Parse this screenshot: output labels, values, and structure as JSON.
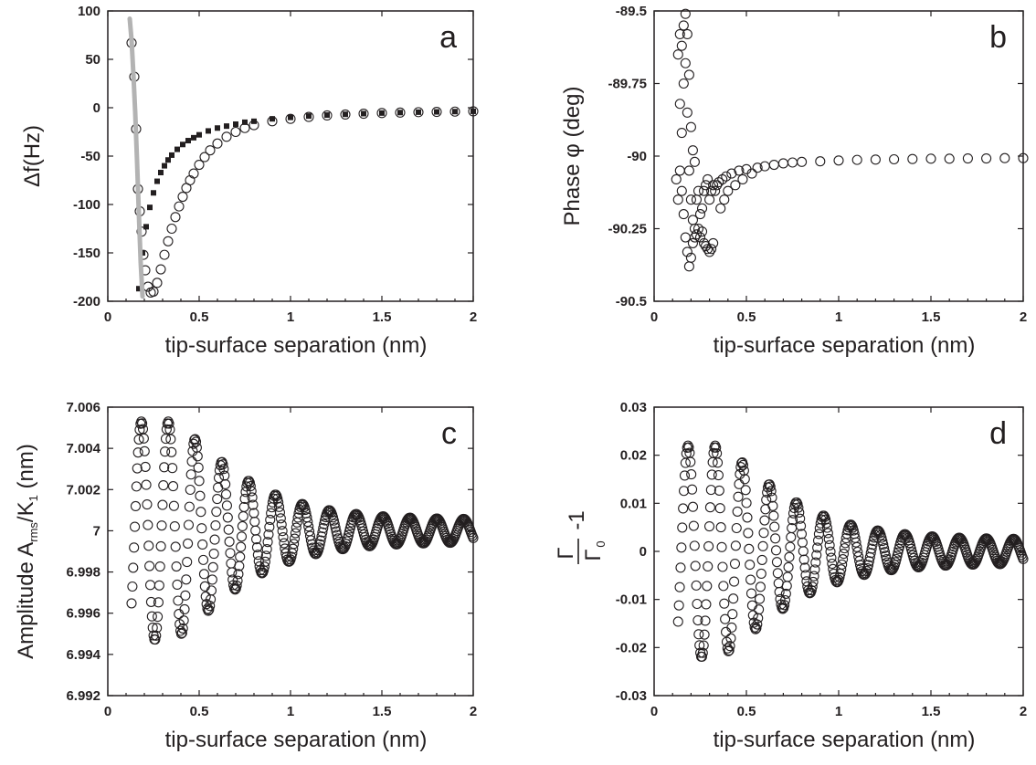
{
  "colors": {
    "ink": "#231f20",
    "model_line": "#b3b3b3",
    "background": "#ffffff"
  },
  "chart_data": [
    {
      "panel": "a",
      "type": "scatter",
      "letter": "a",
      "xlabel": "tip-surface separation (nm)",
      "ylabel": "Δf(Hz)",
      "xlim": [
        0,
        2
      ],
      "ylim": [
        -200,
        100
      ],
      "xticks": [
        "0",
        "0.5",
        "1",
        "1.5",
        "2"
      ],
      "yticks": [
        "100",
        "50",
        "0",
        "-50",
        "-100",
        "-150",
        "-200"
      ],
      "grid": false,
      "series": [
        {
          "style": "open-circles",
          "x": [
            0.13,
            0.145,
            0.155,
            0.165,
            0.175,
            0.185,
            0.195,
            0.205,
            0.22,
            0.235,
            0.25,
            0.27,
            0.29,
            0.31,
            0.33,
            0.35,
            0.37,
            0.39,
            0.41,
            0.43,
            0.45,
            0.47,
            0.5,
            0.53,
            0.56,
            0.6,
            0.65,
            0.7,
            0.75,
            0.8,
            0.9,
            1.0,
            1.1,
            1.2,
            1.3,
            1.4,
            1.5,
            1.6,
            1.7,
            1.8,
            1.9,
            2.0
          ],
          "y": [
            67,
            32,
            -22,
            -84,
            -107,
            -128,
            -152,
            -168,
            -185,
            -191,
            -190,
            -181,
            -167,
            -152,
            -138,
            -125,
            -113,
            -102,
            -92,
            -83,
            -75,
            -68,
            -59,
            -51,
            -44,
            -37,
            -30,
            -25,
            -21,
            -18,
            -14,
            -11.5,
            -9.5,
            -8,
            -7,
            -6.2,
            -5.5,
            -5,
            -4.6,
            -4.3,
            -4,
            -3.7
          ]
        },
        {
          "style": "filled-squares",
          "x": [
            0.17,
            0.19,
            0.21,
            0.23,
            0.25,
            0.27,
            0.29,
            0.31,
            0.33,
            0.35,
            0.38,
            0.41,
            0.44,
            0.47,
            0.5,
            0.55,
            0.6,
            0.65,
            0.7,
            0.75,
            0.8,
            0.9,
            1.0,
            1.1,
            1.2,
            1.3,
            1.4,
            1.5,
            1.6,
            1.7,
            1.8,
            1.9,
            2.0
          ],
          "y": [
            -187,
            -150,
            -123,
            -103,
            -88,
            -76,
            -67,
            -60,
            -54,
            -49,
            -43,
            -38,
            -34,
            -31,
            -28,
            -24,
            -21,
            -19,
            -17,
            -15,
            -14,
            -11.5,
            -10,
            -8.6,
            -7.6,
            -6.8,
            -6.1,
            -5.5,
            -5,
            -4.6,
            -4.3,
            -4,
            -3.7
          ]
        },
        {
          "style": "gray-line",
          "x": [
            0.12,
            0.13,
            0.14,
            0.15,
            0.16,
            0.17,
            0.18,
            0.19
          ],
          "y": [
            92,
            70,
            35,
            -5,
            -55,
            -110,
            -160,
            -195
          ]
        }
      ]
    },
    {
      "panel": "b",
      "type": "scatter",
      "letter": "b",
      "xlabel": "tip-surface separation (nm)",
      "ylabel": "Phase φ (deg)",
      "xlim": [
        0,
        2
      ],
      "ylim": [
        -90.5,
        -89.5
      ],
      "xticks": [
        "0",
        "0.5",
        "1",
        "1.5",
        "2"
      ],
      "yticks": [
        "-89.5",
        "-89.75",
        "-90",
        "-90.25",
        "-90.5"
      ],
      "grid": false,
      "series": [
        {
          "style": "open-circles",
          "x": [
            0.12,
            0.13,
            0.13,
            0.14,
            0.14,
            0.14,
            0.15,
            0.15,
            0.15,
            0.16,
            0.16,
            0.16,
            0.17,
            0.17,
            0.17,
            0.18,
            0.18,
            0.18,
            0.19,
            0.19,
            0.19,
            0.2,
            0.2,
            0.2,
            0.21,
            0.21,
            0.21,
            0.22,
            0.22,
            0.22,
            0.23,
            0.23,
            0.24,
            0.24,
            0.25,
            0.25,
            0.26,
            0.26,
            0.27,
            0.27,
            0.28,
            0.28,
            0.29,
            0.29,
            0.3,
            0.3,
            0.31,
            0.31,
            0.32,
            0.32,
            0.33,
            0.34,
            0.35,
            0.36,
            0.37,
            0.38,
            0.39,
            0.4,
            0.42,
            0.44,
            0.46,
            0.48,
            0.5,
            0.53,
            0.56,
            0.6,
            0.65,
            0.7,
            0.75,
            0.8,
            0.9,
            1.0,
            1.1,
            1.2,
            1.3,
            1.4,
            1.5,
            1.6,
            1.7,
            1.8,
            1.9,
            2.0
          ],
          "y": [
            -90.08,
            -89.65,
            -90.15,
            -89.58,
            -89.82,
            -90.05,
            -89.62,
            -89.92,
            -90.12,
            -89.55,
            -89.75,
            -90.2,
            -89.51,
            -89.68,
            -90.28,
            -89.58,
            -89.85,
            -90.33,
            -89.72,
            -90.05,
            -90.38,
            -89.9,
            -90.15,
            -90.35,
            -89.98,
            -90.22,
            -90.3,
            -90.02,
            -90.25,
            -90.28,
            -90.15,
            -90.27,
            -90.12,
            -90.25,
            -90.2,
            -90.28,
            -90.18,
            -90.26,
            -90.12,
            -90.3,
            -90.1,
            -90.31,
            -90.08,
            -90.32,
            -90.15,
            -90.33,
            -90.12,
            -90.32,
            -90.1,
            -90.3,
            -90.12,
            -90.1,
            -90.09,
            -90.18,
            -90.08,
            -90.15,
            -90.07,
            -90.12,
            -90.06,
            -90.1,
            -90.05,
            -90.08,
            -90.045,
            -90.06,
            -90.04,
            -90.035,
            -90.03,
            -90.025,
            -90.022,
            -90.02,
            -90.018,
            -90.015,
            -90.013,
            -90.012,
            -90.011,
            -90.01,
            -90.009,
            -90.009,
            -90.008,
            -90.008,
            -90.007,
            -90.007
          ]
        }
      ]
    },
    {
      "panel": "c",
      "type": "scatter",
      "letter": "c",
      "xlabel": "tip-surface separation (nm)",
      "ylabel": "Amplitude  A",
      "ylabel_sub": "rms",
      "ylabel_mid": "/K",
      "ylabel_sub2": "1",
      "ylabel_tail": "  (nm)",
      "xlim": [
        0,
        2
      ],
      "ylim": [
        6.992,
        7.006
      ],
      "xticks": [
        "0",
        "0.5",
        "1",
        "1.5",
        "2"
      ],
      "yticks": [
        "7.006",
        "7.004",
        "7.002",
        "7",
        "6.998",
        "6.996",
        "6.994",
        "6.992"
      ],
      "grid": false,
      "oscillation": {
        "center": 7.0,
        "period_nm": 0.147,
        "envelope_near": 0.0053,
        "envelope_far": 0.00055,
        "x_start": 0.13,
        "x_end": 2.0
      }
    },
    {
      "panel": "d",
      "type": "scatter",
      "letter": "d",
      "xlabel": "tip-surface separation (nm)",
      "ylabel_num": "Γ",
      "ylabel_den": "Γ",
      "ylabel_den_sub": "0",
      "ylabel_tail": "-1",
      "xlim": [
        0,
        2
      ],
      "ylim": [
        -0.03,
        0.03
      ],
      "xticks": [
        "0",
        "0.5",
        "1",
        "1.5",
        "2"
      ],
      "yticks": [
        "0.03",
        "0.02",
        "0.01",
        "0",
        "-0.01",
        "-0.02",
        "-0.03"
      ],
      "grid": false,
      "oscillation": {
        "center": 0.0,
        "period_nm": 0.147,
        "envelope_near": 0.022,
        "envelope_far": 0.0025,
        "x_start": 0.13,
        "x_end": 2.0
      }
    }
  ]
}
